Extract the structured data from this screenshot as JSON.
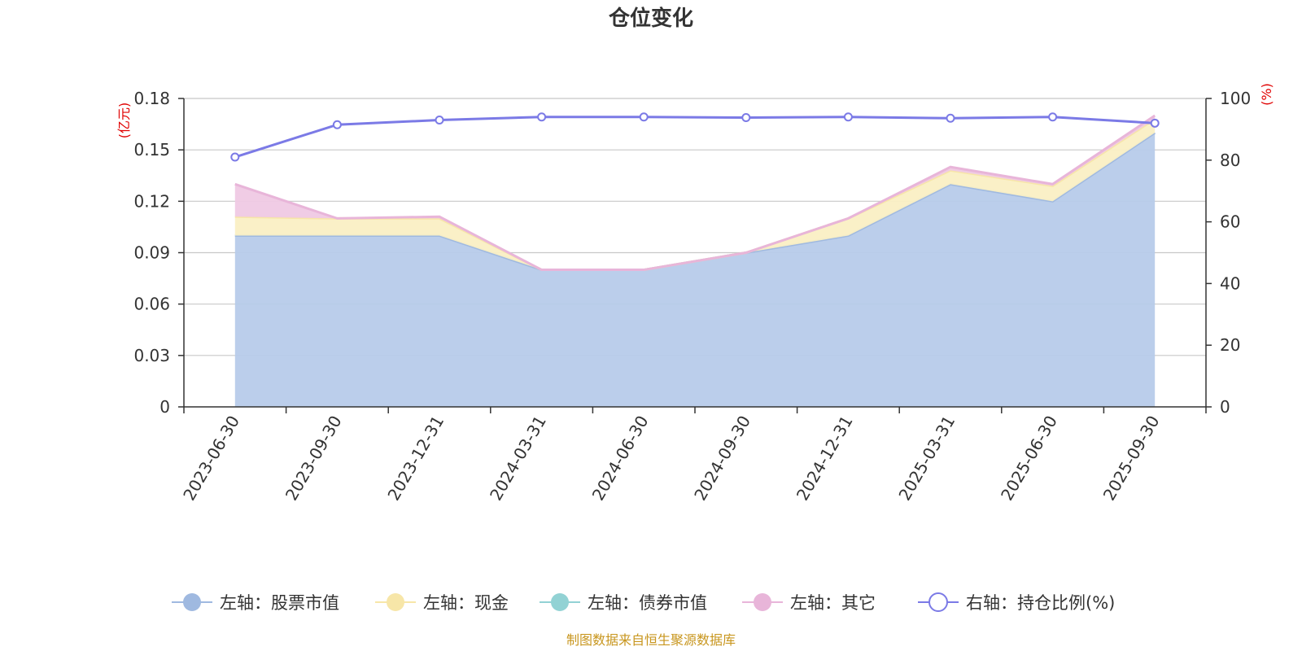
{
  "chart_data": {
    "type": "area",
    "title": "仓位变化",
    "categories": [
      "2023-06-30",
      "2023-09-30",
      "2023-12-31",
      "2024-03-31",
      "2024-06-30",
      "2024-09-30",
      "2024-12-31",
      "2025-03-31",
      "2025-06-30",
      "2025-09-30"
    ],
    "y_left": {
      "unit": "(亿元)",
      "ylim": [
        0,
        0.18
      ],
      "ticks": [
        "0",
        "0.03",
        "0.06",
        "0.09",
        "0.12",
        "0.15",
        "0.18"
      ]
    },
    "y_right": {
      "unit": "(%)",
      "ylim": [
        0,
        100
      ],
      "ticks": [
        "0",
        "20",
        "40",
        "60",
        "80",
        "100"
      ]
    },
    "stacked": true,
    "grid": true,
    "legend_position": "bottom",
    "series": [
      {
        "name": "左轴：股票市值",
        "axis": "left",
        "kind": "area",
        "color": "#9fb9e0",
        "fill": "#b7cbea",
        "values": [
          0.1,
          0.1,
          0.1,
          0.08,
          0.08,
          0.09,
          0.1,
          0.13,
          0.12,
          0.16
        ]
      },
      {
        "name": "左轴：现金",
        "axis": "left",
        "kind": "area",
        "color": "#f7e6a8",
        "fill": "#faefc4",
        "values": [
          0.011,
          0.01,
          0.01,
          0.0,
          0.0,
          0.0,
          0.01,
          0.008,
          0.009,
          0.008
        ]
      },
      {
        "name": "左轴：债券市值",
        "axis": "left",
        "kind": "area",
        "color": "#92d2d4",
        "fill": "#b4e0e1",
        "values": [
          0,
          0,
          0,
          0,
          0,
          0,
          0,
          0,
          0,
          0
        ]
      },
      {
        "name": "左轴：其它",
        "axis": "left",
        "kind": "area",
        "color": "#e8b5d9",
        "fill": "#efc9e4",
        "values": [
          0.019,
          0.0,
          0.001,
          0.0,
          0.0,
          0.0,
          0.0,
          0.002,
          0.001,
          0.002
        ]
      },
      {
        "name": "右轴：持仓比例(%)",
        "axis": "right",
        "kind": "line",
        "color": "#7b7ae6",
        "values": [
          81.0,
          91.5,
          93.0,
          94.0,
          94.0,
          93.8,
          94.0,
          93.6,
          94.0,
          92.0
        ]
      }
    ]
  },
  "footer": {
    "source": "制图数据来自恒生聚源数据库"
  }
}
